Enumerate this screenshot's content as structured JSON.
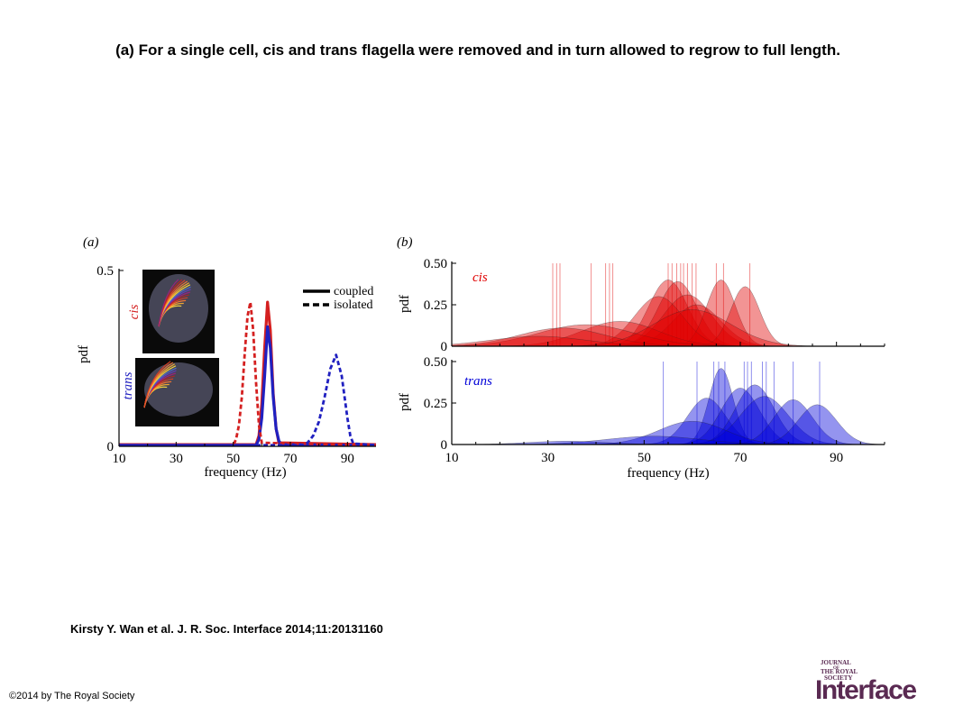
{
  "slide_title": "(a) For a single cell, cis and trans flagella were removed and in turn allowed to regrow to full length.",
  "citation": "Kirsty Y. Wan et al. J. R. Soc. Interface 2014;11:20131160",
  "copyright": "©2014 by The Royal Society",
  "logo": {
    "line1": "JOURNAL",
    "line2": "OF",
    "line3": "THE ROYAL",
    "line4": "SOCIETY",
    "big": "Interface",
    "color": "#5a2a52"
  },
  "chart_data": [
    {
      "panel_label": "(a)",
      "type": "line",
      "xlabel": "frequency (Hz)",
      "ylabel": "pdf",
      "xlim": [
        10,
        100
      ],
      "ylim": [
        0,
        0.5
      ],
      "xticks": [
        "10",
        "30",
        "50",
        "70",
        "90"
      ],
      "yticks": [
        "0",
        "0.5"
      ],
      "legend": {
        "position": "top-right",
        "entries": [
          "coupled",
          "isolated"
        ]
      },
      "insets": [
        "cis",
        "trans"
      ],
      "series": [
        {
          "flagellum": "cis",
          "style": "coupled",
          "color": "#d42020",
          "x": [
            10,
            58,
            59,
            60,
            61,
            62,
            63,
            64,
            65,
            66,
            100
          ],
          "y": [
            0.005,
            0.005,
            0.03,
            0.12,
            0.28,
            0.41,
            0.33,
            0.15,
            0.05,
            0.01,
            0.005
          ]
        },
        {
          "flagellum": "trans",
          "style": "coupled",
          "color": "#2020c0",
          "x": [
            10,
            58,
            59,
            60,
            61,
            62,
            63,
            64,
            65,
            66,
            67,
            100
          ],
          "y": [
            0.003,
            0.003,
            0.02,
            0.08,
            0.2,
            0.34,
            0.28,
            0.14,
            0.05,
            0.015,
            0.005,
            0.003
          ]
        },
        {
          "flagellum": "cis",
          "style": "isolated",
          "color": "#d42020",
          "x": [
            10,
            50,
            51,
            52,
            53,
            54,
            55,
            56,
            57,
            58,
            59,
            60,
            100
          ],
          "y": [
            0.003,
            0.003,
            0.02,
            0.06,
            0.14,
            0.26,
            0.37,
            0.41,
            0.33,
            0.18,
            0.06,
            0.01,
            0.003
          ]
        },
        {
          "flagellum": "trans",
          "style": "isolated",
          "color": "#2020c0",
          "x": [
            10,
            74,
            76,
            78,
            80,
            82,
            84,
            86,
            88,
            90,
            91,
            92,
            100
          ],
          "y": [
            0.003,
            0.003,
            0.01,
            0.03,
            0.07,
            0.14,
            0.22,
            0.26,
            0.2,
            0.08,
            0.03,
            0.008,
            0.003
          ]
        }
      ]
    },
    {
      "panel_label": "(b)",
      "type": "area",
      "xlabel": "frequency (Hz)",
      "xlim": [
        10,
        100
      ],
      "xticks": [
        "10",
        "30",
        "50",
        "70",
        "90"
      ],
      "panels": [
        {
          "name": "cis",
          "color": "#e00000",
          "ylabel": "pdf",
          "ylim": [
            0,
            0.5
          ],
          "yticks": [
            "0",
            "0.25",
            "0.50"
          ],
          "vlines": [
            31,
            31.8,
            32.5,
            39,
            42,
            42.8,
            43.5,
            55,
            55.8,
            56.8,
            57.6,
            58.2,
            59,
            60,
            60.8,
            65,
            66.5,
            72
          ],
          "peaks": [
            {
              "center": 55,
              "height": 0.4,
              "width": 4
            },
            {
              "center": 57,
              "height": 0.39,
              "width": 4
            },
            {
              "center": 59,
              "height": 0.31,
              "width": 5
            },
            {
              "center": 61,
              "height": 0.25,
              "width": 5
            },
            {
              "center": 66,
              "height": 0.4,
              "width": 3
            },
            {
              "center": 71,
              "height": 0.36,
              "width": 3
            },
            {
              "center": 53,
              "height": 0.3,
              "width": 5
            },
            {
              "center": 45,
              "height": 0.15,
              "width": 8
            },
            {
              "center": 38,
              "height": 0.13,
              "width": 10
            },
            {
              "center": 33,
              "height": 0.11,
              "width": 9
            },
            {
              "center": 28,
              "height": 0.06,
              "width": 10
            },
            {
              "center": 60,
              "height": 0.22,
              "width": 8
            }
          ]
        },
        {
          "name": "trans",
          "color": "#0000d8",
          "ylabel": "pdf",
          "ylim": [
            0,
            0.5
          ],
          "yticks": [
            "0",
            "0.25",
            "0.50"
          ],
          "vlines": [
            54,
            61,
            64.5,
            65.5,
            66.8,
            70.8,
            71.5,
            72.3,
            74.6,
            75.4,
            77,
            81,
            86.5
          ],
          "peaks": [
            {
              "center": 66,
              "height": 0.46,
              "width": 2.5
            },
            {
              "center": 63,
              "height": 0.28,
              "width": 4
            },
            {
              "center": 70,
              "height": 0.34,
              "width": 4
            },
            {
              "center": 73,
              "height": 0.36,
              "width": 4
            },
            {
              "center": 75,
              "height": 0.29,
              "width": 5
            },
            {
              "center": 81,
              "height": 0.27,
              "width": 4
            },
            {
              "center": 86,
              "height": 0.24,
              "width": 4
            },
            {
              "center": 60,
              "height": 0.14,
              "width": 7
            },
            {
              "center": 52,
              "height": 0.05,
              "width": 10
            },
            {
              "center": 34,
              "height": 0.02,
              "width": 8
            }
          ]
        }
      ]
    }
  ]
}
